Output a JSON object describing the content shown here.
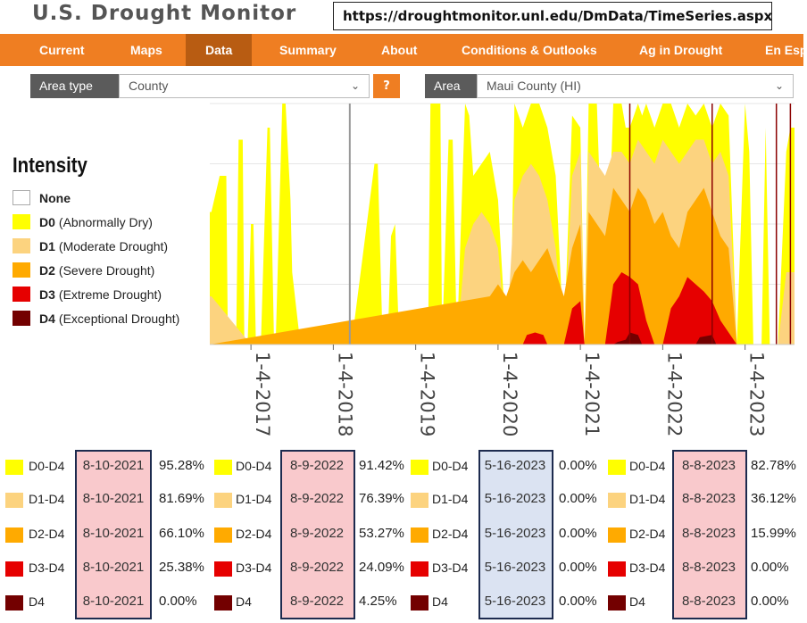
{
  "header": {
    "logo_text": "U.S. Drought Monitor",
    "url_text": "https://droughtmonitor.unl.edu/DmData/TimeSeries.aspx"
  },
  "nav": {
    "items": [
      "Current",
      "Maps",
      "Data",
      "Summary",
      "About",
      "Conditions & Outlooks",
      "Ag in Drought",
      "En Esp"
    ],
    "active": "Data"
  },
  "filters": {
    "area_type_label": "Area type",
    "area_type_value": "County",
    "help_label": "?",
    "area_label": "Area",
    "area_value": "Maui County (HI)"
  },
  "legend": {
    "title": "Intensity",
    "items": [
      {
        "code": "None",
        "desc": "",
        "color": "#ffffff"
      },
      {
        "code": "D0",
        "desc": "(Abnormally Dry)",
        "color": "#ffff00"
      },
      {
        "code": "D1",
        "desc": "(Moderate Drought)",
        "color": "#fcd37f"
      },
      {
        "code": "D2",
        "desc": "(Severe Drought)",
        "color": "#ffaa00"
      },
      {
        "code": "D3",
        "desc": "(Extreme Drought)",
        "color": "#e60000"
      },
      {
        "code": "D4",
        "desc": "(Exceptional Drought)",
        "color": "#730000"
      }
    ]
  },
  "chart_data": {
    "type": "area",
    "title": "",
    "xlabel": "",
    "ylabel": "",
    "ylim": [
      0,
      100
    ],
    "x_ticks": [
      "1-4-2017",
      "1-4-2018",
      "1-4-2019",
      "1-4-2020",
      "1-4-2021",
      "1-4-2022",
      "1-4-2023"
    ],
    "x_tick_years": [
      2017,
      2018,
      2019,
      2020,
      2021,
      2022,
      2023
    ],
    "x_range": [
      2016.5,
      2023.6
    ],
    "grid": true,
    "stacking": "cumulative percent of area",
    "series": [
      {
        "name": "D0-D4",
        "color": "#ffff00",
        "x": [
          2016.5,
          2016.52,
          2016.62,
          2016.7,
          2016.72,
          2016.82,
          2016.85,
          2016.9,
          2016.92,
          2016.96,
          2017.0,
          2017.03,
          2017.06,
          2017.12,
          2017.2,
          2017.23,
          2017.28,
          2017.3,
          2017.38,
          2017.42,
          2017.48,
          2017.5,
          2017.6,
          2017.62,
          2017.72,
          2017.76,
          2017.8,
          2017.9,
          2017.92,
          2018.1,
          2018.2,
          2018.22,
          2018.5,
          2018.54,
          2018.6,
          2018.66,
          2018.7,
          2018.75,
          2018.8,
          2018.95,
          2019.02,
          2019.1,
          2019.15,
          2019.18,
          2019.3,
          2019.32,
          2019.4,
          2019.45,
          2019.5,
          2019.6,
          2019.65,
          2019.7,
          2019.8,
          2019.9,
          2020.0,
          2020.1,
          2020.15,
          2020.2,
          2020.3,
          2020.4,
          2020.5,
          2020.6,
          2020.7,
          2020.8,
          2020.9,
          2021.0,
          2021.05,
          2021.1,
          2021.2,
          2021.3,
          2021.4,
          2021.5,
          2021.55,
          2021.6,
          2021.7,
          2021.75,
          2021.8,
          2021.9,
          2022.0,
          2022.1,
          2022.2,
          2022.3,
          2022.4,
          2022.5,
          2022.6,
          2022.7,
          2022.8,
          2022.9,
          2023.0,
          2023.05,
          2023.1,
          2023.2,
          2023.25,
          2023.3,
          2023.38,
          2023.4,
          2023.5,
          2023.55,
          2023.6
        ],
        "values": [
          55,
          55,
          70,
          70,
          0,
          0,
          85,
          85,
          0,
          0,
          50,
          50,
          0,
          0,
          90,
          90,
          0,
          0,
          100,
          100,
          60,
          30,
          0,
          0,
          0,
          0,
          0,
          0,
          0,
          0,
          0,
          0,
          75,
          75,
          0,
          0,
          45,
          50,
          0,
          0,
          0,
          0,
          0,
          100,
          100,
          0,
          85,
          85,
          0,
          100,
          95,
          70,
          75,
          80,
          60,
          0,
          0,
          100,
          90,
          100,
          100,
          90,
          70,
          0,
          95,
          90,
          0,
          100,
          100,
          0,
          100,
          100,
          90,
          90,
          100,
          95,
          100,
          90,
          100,
          100,
          90,
          100,
          95,
          100,
          90,
          100,
          95,
          0,
          100,
          80,
          0,
          0,
          90,
          0,
          0,
          0,
          80,
          90,
          90
        ]
      },
      {
        "name": "D1-D4",
        "color": "#fcd37f",
        "x": [
          2016.5,
          2016.52,
          2017.0,
          2017.5,
          2018.6,
          2018.66,
          2019.2,
          2019.35,
          2019.5,
          2019.6,
          2019.7,
          2019.8,
          2019.9,
          2020.0,
          2020.1,
          2020.2,
          2020.3,
          2020.4,
          2020.5,
          2020.6,
          2020.7,
          2020.8,
          2020.9,
          2021.0,
          2021.05,
          2021.1,
          2021.2,
          2021.3,
          2021.4,
          2021.5,
          2021.6,
          2021.7,
          2021.8,
          2021.9,
          2022.0,
          2022.1,
          2022.2,
          2022.3,
          2022.4,
          2022.5,
          2022.6,
          2022.7,
          2022.8,
          2022.9,
          2023.0,
          2023.05,
          2023.1,
          2023.4,
          2023.5,
          2023.6
        ],
        "values": [
          20,
          20,
          0,
          0,
          0,
          0,
          0,
          0,
          0,
          40,
          50,
          55,
          50,
          40,
          0,
          60,
          70,
          75,
          70,
          60,
          40,
          0,
          70,
          80,
          0,
          80,
          75,
          70,
          80,
          80,
          75,
          85,
          80,
          75,
          85,
          80,
          75,
          80,
          85,
          85,
          75,
          80,
          70,
          0,
          0,
          0,
          0,
          0,
          30,
          30
        ]
      },
      {
        "name": "D2-D4",
        "color": "#ffaa00",
        "x": [
          2016.5,
          2019.9,
          2020.0,
          2020.1,
          2020.2,
          2020.3,
          2020.4,
          2020.5,
          2020.6,
          2020.7,
          2020.8,
          2020.9,
          2021.0,
          2021.05,
          2021.1,
          2021.2,
          2021.3,
          2021.4,
          2021.5,
          2021.6,
          2021.7,
          2021.8,
          2021.9,
          2022.0,
          2022.1,
          2022.2,
          2022.3,
          2022.4,
          2022.5,
          2022.6,
          2022.7,
          2022.8,
          2022.9,
          2023.6
        ],
        "values": [
          0,
          20,
          25,
          20,
          30,
          35,
          30,
          35,
          40,
          30,
          20,
          40,
          50,
          0,
          55,
          50,
          45,
          65,
          60,
          55,
          65,
          60,
          50,
          55,
          45,
          40,
          55,
          60,
          65,
          55,
          45,
          40,
          0,
          0
        ]
      },
      {
        "name": "D3-D4",
        "color": "#e60000",
        "x": [
          2016.5,
          2020.3,
          2020.35,
          2020.45,
          2020.55,
          2020.6,
          2020.8,
          2020.9,
          2021.0,
          2021.05,
          2021.1,
          2021.3,
          2021.4,
          2021.5,
          2021.6,
          2021.7,
          2021.8,
          2021.9,
          2022.0,
          2022.1,
          2022.2,
          2022.3,
          2022.4,
          2022.5,
          2022.6,
          2022.7,
          2022.8,
          2022.9,
          2023.6
        ],
        "values": [
          0,
          0,
          4,
          5,
          4,
          0,
          0,
          15,
          18,
          0,
          0,
          0,
          25,
          30,
          28,
          25,
          10,
          0,
          0,
          15,
          20,
          28,
          25,
          22,
          18,
          10,
          5,
          0,
          0
        ]
      },
      {
        "name": "D4",
        "color": "#730000",
        "x": [
          2016.5,
          2021.4,
          2021.45,
          2021.55,
          2021.6,
          2021.7,
          2021.75,
          2022.4,
          2022.45,
          2022.6,
          2022.65,
          2023.6
        ],
        "values": [
          0,
          0,
          1,
          2,
          5,
          4,
          0,
          0,
          3,
          4,
          0,
          0
        ]
      }
    ],
    "markers": {
      "gray_line_x": 2018.2,
      "dark_red_lines_x": [
        2021.6,
        2022.6,
        2023.38,
        2023.55
      ]
    }
  },
  "summary_tables": [
    {
      "date": "8-10-2021",
      "highlight": "#f9c9cc",
      "rows": [
        {
          "label": "D0-D4",
          "color": "#ffff00",
          "date": "8-10-2021",
          "pct": "95.28%"
        },
        {
          "label": "D1-D4",
          "color": "#fcd37f",
          "date": "8-10-2021",
          "pct": "81.69%"
        },
        {
          "label": "D2-D4",
          "color": "#ffaa00",
          "date": "8-10-2021",
          "pct": "66.10%"
        },
        {
          "label": "D3-D4",
          "color": "#e60000",
          "date": "8-10-2021",
          "pct": "25.38%"
        },
        {
          "label": "D4",
          "color": "#730000",
          "date": "8-10-2021",
          "pct": "0.00%"
        }
      ]
    },
    {
      "date": "8-9-2022",
      "highlight": "#f9c9cc",
      "rows": [
        {
          "label": "D0-D4",
          "color": "#ffff00",
          "date": "8-9-2022",
          "pct": "91.42%"
        },
        {
          "label": "D1-D4",
          "color": "#fcd37f",
          "date": "8-9-2022",
          "pct": "76.39%"
        },
        {
          "label": "D2-D4",
          "color": "#ffaa00",
          "date": "8-9-2022",
          "pct": "53.27%"
        },
        {
          "label": "D3-D4",
          "color": "#e60000",
          "date": "8-9-2022",
          "pct": "24.09%"
        },
        {
          "label": "D4",
          "color": "#730000",
          "date": "8-9-2022",
          "pct": "4.25%"
        }
      ]
    },
    {
      "date": "5-16-2023",
      "highlight": "#dbe3f2",
      "rows": [
        {
          "label": "D0-D4",
          "color": "#ffff00",
          "date": "5-16-2023",
          "pct": "0.00%"
        },
        {
          "label": "D1-D4",
          "color": "#fcd37f",
          "date": "5-16-2023",
          "pct": "0.00%"
        },
        {
          "label": "D2-D4",
          "color": "#ffaa00",
          "date": "5-16-2023",
          "pct": "0.00%"
        },
        {
          "label": "D3-D4",
          "color": "#e60000",
          "date": "5-16-2023",
          "pct": "0.00%"
        },
        {
          "label": "D4",
          "color": "#730000",
          "date": "5-16-2023",
          "pct": "0.00%"
        }
      ]
    },
    {
      "date": "8-8-2023",
      "highlight": "#f9c9cc",
      "rows": [
        {
          "label": "D0-D4",
          "color": "#ffff00",
          "date": "8-8-2023",
          "pct": "82.78%"
        },
        {
          "label": "D1-D4",
          "color": "#fcd37f",
          "date": "8-8-2023",
          "pct": "36.12%"
        },
        {
          "label": "D2-D4",
          "color": "#ffaa00",
          "date": "8-8-2023",
          "pct": "15.99%"
        },
        {
          "label": "D3-D4",
          "color": "#e60000",
          "date": "8-8-2023",
          "pct": "0.00%"
        },
        {
          "label": "D4",
          "color": "#730000",
          "date": "8-8-2023",
          "pct": "0.00%"
        }
      ]
    }
  ]
}
